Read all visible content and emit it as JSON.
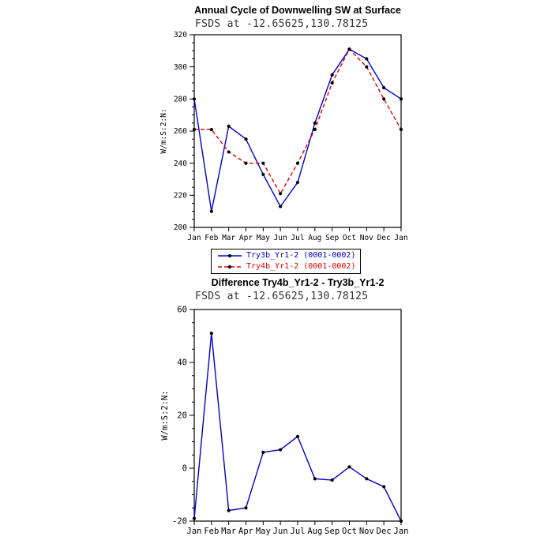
{
  "chart_data": [
    {
      "type": "line",
      "title": "Annual Cycle of Downwelling SW at Surface",
      "subtitle": "FSDS at -12.65625,130.78125",
      "ylabel": "W/m:S:2:N:",
      "categories": [
        "Jan",
        "Feb",
        "Mar",
        "Apr",
        "May",
        "Jun",
        "Jul",
        "Aug",
        "Sep",
        "Oct",
        "Nov",
        "Dec",
        "Jan"
      ],
      "ylim": [
        200,
        320
      ],
      "ytick_step": 20,
      "grid": false,
      "legend_position": "below",
      "series": [
        {
          "name": "Try3b_Yr1-2 (0001-0002)",
          "color": "#0000cd",
          "style": "solid",
          "values": [
            280,
            210,
            263,
            255,
            233,
            213,
            228,
            265,
            295,
            311,
            305,
            287,
            280
          ]
        },
        {
          "name": "Try4b_Yr1-2 (0001-0002)",
          "color": "#e00000",
          "style": "dashed",
          "values": [
            261,
            261,
            247,
            240,
            240,
            221,
            240,
            261,
            290,
            311,
            300,
            280,
            261
          ]
        }
      ]
    },
    {
      "type": "line",
      "title": "Difference Try4b_Yr1-2 - Try3b_Yr1-2",
      "subtitle": "FSDS at -12.65625,130.78125",
      "ylabel": "W/m:S:2:N:",
      "categories": [
        "Jan",
        "Feb",
        "Mar",
        "Apr",
        "May",
        "Jun",
        "Jul",
        "Aug",
        "Sep",
        "Oct",
        "Nov",
        "Dec",
        "Jan"
      ],
      "ylim": [
        -20,
        60
      ],
      "ytick_step": 20,
      "grid": false,
      "legend_position": "none",
      "series": [
        {
          "name": "Try4b_Yr1-2 - Try3b_Yr1-2",
          "color": "#0000cd",
          "style": "solid",
          "values": [
            -19,
            51,
            -16,
            -15,
            6,
            7,
            12,
            -4,
            -4.5,
            0.5,
            -4,
            -7,
            -20
          ]
        }
      ]
    }
  ],
  "marker_color": "#000000",
  "frame_color": "#000000"
}
